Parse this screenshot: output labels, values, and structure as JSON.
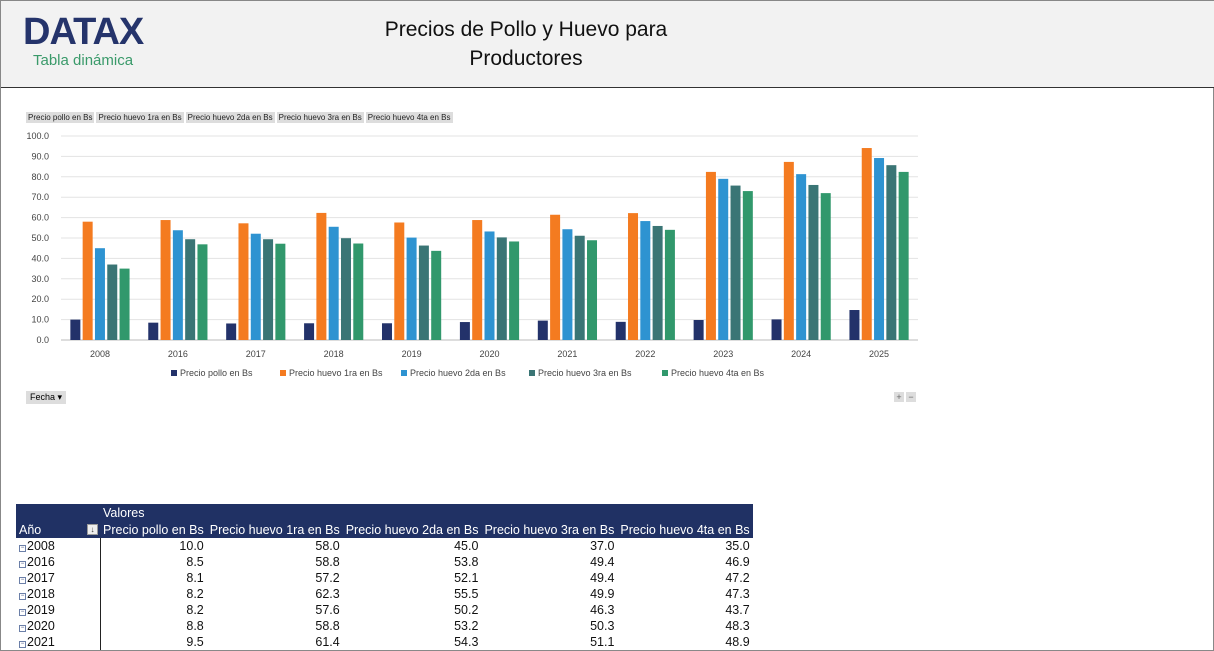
{
  "header": {
    "logo": "DATAX",
    "subtitle": "Tabla dinámica",
    "title": "Precios de Pollo y Huevo para Productores"
  },
  "field_buttons": [
    "Precio pollo  en Bs",
    "Precio huevo 1ra en Bs",
    "Precio huevo 2da en Bs",
    "Precio huevo 3ra en Bs",
    "Precio huevo 4ta en Bs"
  ],
  "filter_button": "Fecha ▾",
  "zoom_buttons": [
    "+",
    "−"
  ],
  "colors": {
    "header_bg": "#f2f2f2",
    "table_header": "#203164",
    "series": [
      "#23326a",
      "#f47b20",
      "#2e93d1",
      "#3a7575",
      "#31986c"
    ]
  },
  "chart_data": {
    "type": "bar",
    "categories": [
      "2008",
      "2016",
      "2017",
      "2018",
      "2019",
      "2020",
      "2021",
      "2022",
      "2023",
      "2024",
      "2025"
    ],
    "ylim": [
      0,
      100
    ],
    "yticks": [
      "0.0",
      "10.0",
      "20.0",
      "30.0",
      "40.0",
      "50.0",
      "60.0",
      "70.0",
      "80.0",
      "90.0",
      "100.0"
    ],
    "grid": true,
    "legend": "bottom",
    "series": [
      {
        "name": "Precio pollo  en Bs",
        "values": [
          10.0,
          8.5,
          8.1,
          8.2,
          8.2,
          8.8,
          9.5,
          8.9,
          9.8,
          10.1,
          14.7
        ]
      },
      {
        "name": "Precio huevo 1ra en Bs",
        "values": [
          58.0,
          58.8,
          57.2,
          62.3,
          57.6,
          58.8,
          61.4,
          62.2,
          82.4,
          87.3,
          94.1
        ]
      },
      {
        "name": "Precio huevo 2da en Bs",
        "values": [
          45.0,
          53.8,
          52.1,
          55.5,
          50.2,
          53.2,
          54.3,
          58.3,
          79.0,
          81.3,
          89.2
        ]
      },
      {
        "name": "Precio huevo 3ra en Bs",
        "values": [
          37.0,
          49.4,
          49.4,
          49.9,
          46.3,
          50.3,
          51.1,
          55.9,
          75.7,
          76.0,
          85.7
        ]
      },
      {
        "name": "Precio huevo 4ta en Bs",
        "values": [
          35.0,
          46.9,
          47.2,
          47.3,
          43.7,
          48.3,
          48.9,
          54.0,
          73.0,
          72.0,
          82.4
        ]
      }
    ]
  },
  "table": {
    "values_label": "Valores",
    "row_header": "Año",
    "columns": [
      "Precio pollo en Bs",
      "Precio huevo 1ra en Bs",
      "Precio huevo 2da en Bs",
      "Precio huevo 3ra en Bs",
      "Precio huevo 4ta en Bs"
    ],
    "rows": [
      [
        "2008",
        "10.0",
        "58.0",
        "45.0",
        "37.0",
        "35.0"
      ],
      [
        "2016",
        "8.5",
        "58.8",
        "53.8",
        "49.4",
        "46.9"
      ],
      [
        "2017",
        "8.1",
        "57.2",
        "52.1",
        "49.4",
        "47.2"
      ],
      [
        "2018",
        "8.2",
        "62.3",
        "55.5",
        "49.9",
        "47.3"
      ],
      [
        "2019",
        "8.2",
        "57.6",
        "50.2",
        "46.3",
        "43.7"
      ],
      [
        "2020",
        "8.8",
        "58.8",
        "53.2",
        "50.3",
        "48.3"
      ],
      [
        "2021",
        "9.5",
        "61.4",
        "54.3",
        "51.1",
        "48.9"
      ]
    ]
  }
}
